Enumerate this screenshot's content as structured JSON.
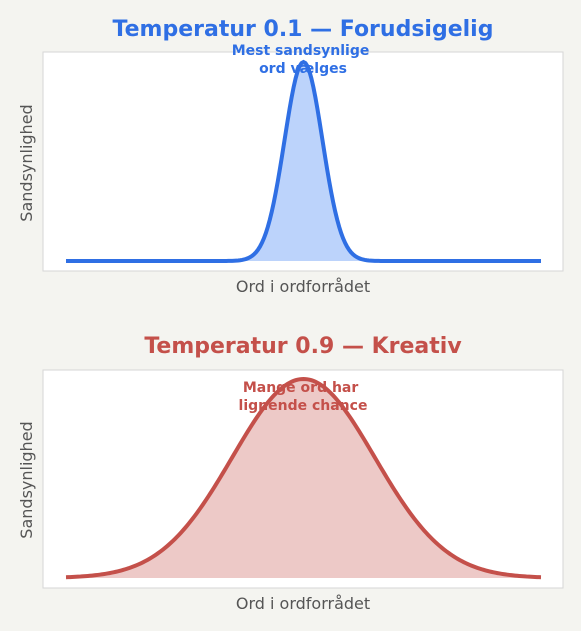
{
  "chart_data": [
    {
      "type": "area",
      "title": "Temperatur 0.1 — Forudsigelig",
      "xlabel": "Ord i ordforrådet",
      "ylabel": "Sandsynlighed",
      "annotation": [
        "Mest sandsynlige",
        "ord vælges"
      ],
      "color": "#2f6fe4",
      "fill": "#bcd3fb",
      "grid": false,
      "curve": {
        "shape": "gaussian",
        "center": 0.5,
        "sigma": 0.04,
        "xlim": [
          0,
          1
        ],
        "peak": 1.0
      }
    },
    {
      "type": "area",
      "title": "Temperatur 0.9 — Kreativ",
      "xlabel": "Ord i ordforrådet",
      "ylabel": "Sandsynlighed",
      "annotation": [
        "Mange ord har",
        "lignende chance"
      ],
      "color": "#c4504a",
      "fill": "#edc9c7",
      "grid": false,
      "curve": {
        "shape": "gaussian",
        "center": 0.5,
        "sigma": 0.15,
        "xlim": [
          0,
          1
        ],
        "peak": 1.0
      }
    }
  ]
}
